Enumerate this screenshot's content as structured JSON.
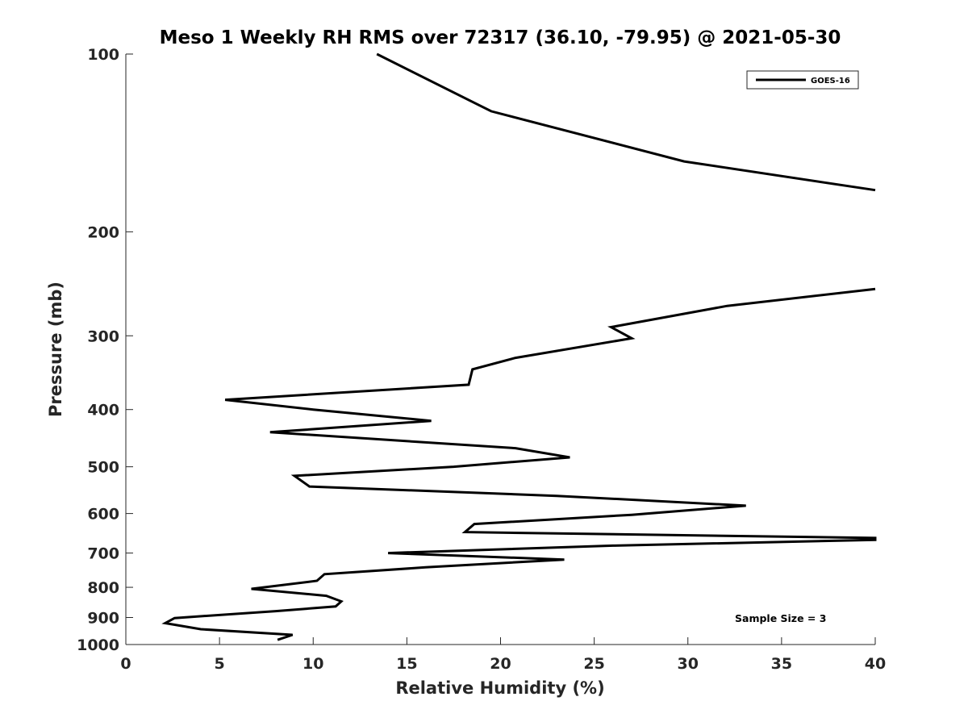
{
  "chart_data": {
    "type": "line",
    "title": "Meso 1 Weekly RH RMS over 72317 (36.10, -79.95) @ 2021-05-30",
    "xlabel": "Relative Humidity (%)",
    "ylabel": "Pressure (mb)",
    "xlim": [
      0,
      40
    ],
    "ylim": [
      100,
      1000
    ],
    "y_scale": "log",
    "y_reversed": true,
    "grid": false,
    "legend_position": "top-right",
    "x_ticks": [
      "0",
      "5",
      "10",
      "15",
      "20",
      "25",
      "30",
      "35",
      "40"
    ],
    "y_ticks": [
      "100",
      "200",
      "300",
      "400",
      "500",
      "600",
      "700",
      "800",
      "900",
      "1000"
    ],
    "annotation": "Sample Size = 3",
    "series": [
      {
        "name": "GOES-16",
        "color": "#000000",
        "segments": [
          [
            {
              "x": 13.4,
              "y": 100
            },
            {
              "x": 19.5,
              "y": 125
            },
            {
              "x": 29.8,
              "y": 152
            },
            {
              "x": 40.0,
              "y": 170
            }
          ],
          [
            {
              "x": 40.0,
              "y": 250
            },
            {
              "x": 32.1,
              "y": 267
            },
            {
              "x": 25.9,
              "y": 290
            },
            {
              "x": 27.0,
              "y": 303
            },
            {
              "x": 20.8,
              "y": 327
            },
            {
              "x": 18.5,
              "y": 342
            },
            {
              "x": 18.3,
              "y": 363
            },
            {
              "x": 5.3,
              "y": 385
            },
            {
              "x": 10.0,
              "y": 400
            },
            {
              "x": 16.3,
              "y": 418
            },
            {
              "x": 7.7,
              "y": 437
            },
            {
              "x": 20.8,
              "y": 465
            },
            {
              "x": 23.7,
              "y": 482
            },
            {
              "x": 17.5,
              "y": 500
            },
            {
              "x": 9.0,
              "y": 518
            },
            {
              "x": 9.8,
              "y": 540
            },
            {
              "x": 23.0,
              "y": 560
            },
            {
              "x": 33.1,
              "y": 582
            },
            {
              "x": 27.0,
              "y": 603
            },
            {
              "x": 18.6,
              "y": 625
            },
            {
              "x": 18.1,
              "y": 645
            },
            {
              "x": 40.0,
              "y": 660
            },
            {
              "x": 40.0,
              "y": 665
            },
            {
              "x": 26.0,
              "y": 680
            },
            {
              "x": 14.0,
              "y": 700
            },
            {
              "x": 23.4,
              "y": 718
            },
            {
              "x": 16.0,
              "y": 740
            },
            {
              "x": 10.6,
              "y": 760
            },
            {
              "x": 10.2,
              "y": 780
            },
            {
              "x": 6.7,
              "y": 805
            },
            {
              "x": 10.7,
              "y": 827
            },
            {
              "x": 11.5,
              "y": 845
            },
            {
              "x": 11.2,
              "y": 862
            },
            {
              "x": 8.0,
              "y": 878
            },
            {
              "x": 2.6,
              "y": 902
            },
            {
              "x": 2.1,
              "y": 920
            },
            {
              "x": 4.0,
              "y": 942
            },
            {
              "x": 8.9,
              "y": 963
            },
            {
              "x": 8.1,
              "y": 982
            }
          ]
        ]
      }
    ]
  }
}
